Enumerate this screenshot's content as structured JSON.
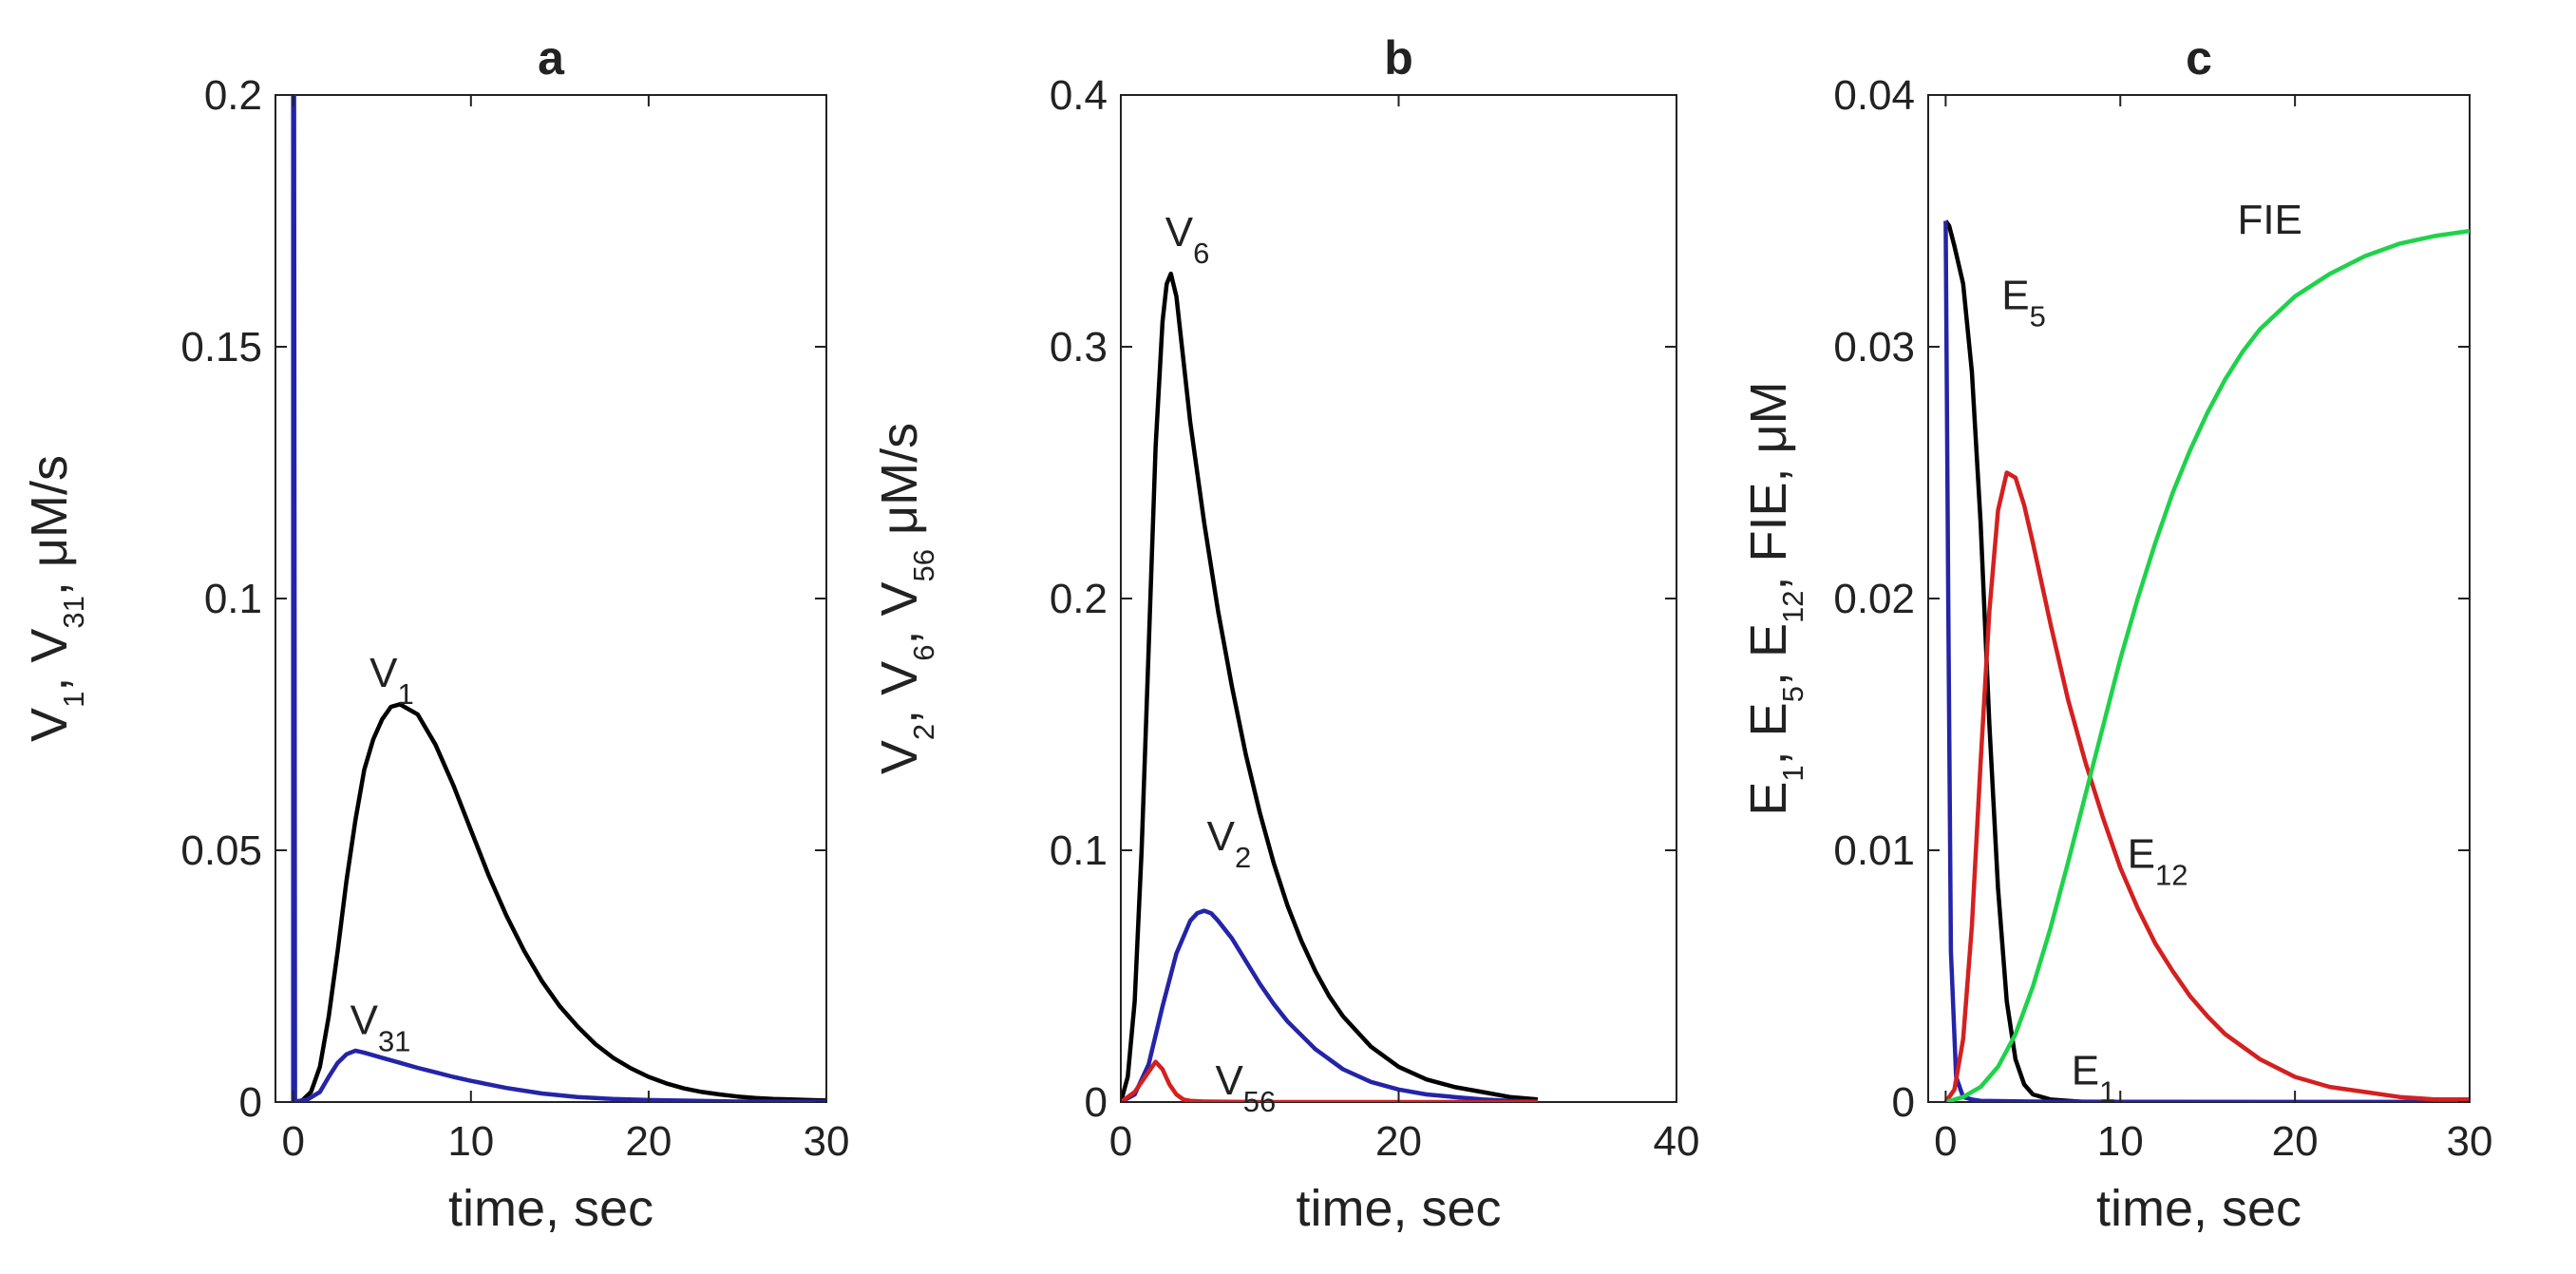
{
  "chart_data": [
    {
      "type": "line",
      "panel": "a",
      "title": "a",
      "xlabel": "time, sec",
      "ylabel": [
        [
          "V",
          "1"
        ],
        [
          ", ",
          ""
        ],
        [
          "V",
          "31"
        ],
        [
          ", μM/s",
          ""
        ]
      ],
      "xlim": [
        -1,
        30
      ],
      "ylim": [
        0,
        0.2
      ],
      "xticks": [
        0,
        10,
        20,
        30
      ],
      "yticks": [
        0,
        0.05,
        0.1,
        0.15,
        0.2
      ],
      "grid": false,
      "series": [
        {
          "name": "V1",
          "color": "#000000",
          "x": [
            0,
            0.5,
            1,
            1.5,
            2,
            2.5,
            3,
            3.5,
            4,
            4.5,
            5,
            5.5,
            6,
            7,
            8,
            9,
            10,
            11,
            12,
            13,
            14,
            15,
            16,
            17,
            18,
            19,
            20,
            21,
            22,
            23,
            24,
            25,
            26,
            27,
            28,
            29,
            30
          ],
          "y": [
            0,
            0.0003,
            0.002,
            0.007,
            0.017,
            0.03,
            0.044,
            0.056,
            0.066,
            0.072,
            0.076,
            0.0785,
            0.079,
            0.077,
            0.071,
            0.063,
            0.054,
            0.045,
            0.037,
            0.03,
            0.024,
            0.019,
            0.015,
            0.0115,
            0.0088,
            0.0067,
            0.005,
            0.0037,
            0.0027,
            0.002,
            0.0015,
            0.0011,
            0.0008,
            0.0006,
            0.0005,
            0.0004,
            0.0003
          ]
        },
        {
          "name": "V31",
          "color": "#2424a8",
          "x": [
            0,
            0.8,
            1.5,
            2,
            2.5,
            3,
            3.5,
            4,
            5,
            6,
            7,
            8,
            9,
            10,
            12,
            14,
            16,
            18,
            20,
            25,
            30
          ],
          "y": [
            0,
            0.0005,
            0.002,
            0.005,
            0.0078,
            0.0095,
            0.0102,
            0.0098,
            0.0088,
            0.0078,
            0.0068,
            0.0059,
            0.005,
            0.0042,
            0.0028,
            0.0017,
            0.001,
            0.0006,
            0.0004,
            0.0001,
            0.0001
          ]
        },
        {
          "name": "spike",
          "color": "#2424a8",
          "x": [
            0,
            0,
            0.05,
            0.1
          ],
          "y": [
            0,
            0.2,
            0.2,
            0
          ]
        }
      ],
      "annotations": [
        {
          "base": "V",
          "sub": "1",
          "x": 4.3,
          "y": 0.0825
        },
        {
          "base": "V",
          "sub": "31",
          "x": 3.2,
          "y": 0.0135
        }
      ]
    },
    {
      "type": "line",
      "panel": "b",
      "title": "b",
      "xlabel": "time, sec",
      "ylabel": [
        [
          "V",
          "2"
        ],
        [
          ", ",
          ""
        ],
        [
          "V",
          "6"
        ],
        [
          ", ",
          ""
        ],
        [
          "V",
          "56"
        ],
        [
          " μM/s",
          ""
        ]
      ],
      "xlim": [
        0,
        40
      ],
      "ylim": [
        0,
        0.4
      ],
      "xticks": [
        0,
        20,
        40
      ],
      "yticks": [
        0,
        0.1,
        0.2,
        0.3,
        0.4
      ],
      "grid": false,
      "series": [
        {
          "name": "V6",
          "color": "#000000",
          "x": [
            0,
            0.5,
            1,
            1.5,
            2,
            2.5,
            3,
            3.3,
            3.6,
            4,
            4.5,
            5,
            6,
            7,
            8,
            9,
            10,
            11,
            12,
            13,
            14,
            15,
            16,
            18,
            20,
            22,
            24,
            26,
            28,
            30
          ],
          "y": [
            0,
            0.01,
            0.04,
            0.1,
            0.18,
            0.26,
            0.31,
            0.325,
            0.329,
            0.32,
            0.295,
            0.27,
            0.23,
            0.195,
            0.165,
            0.138,
            0.115,
            0.095,
            0.078,
            0.064,
            0.052,
            0.042,
            0.034,
            0.022,
            0.014,
            0.009,
            0.006,
            0.004,
            0.002,
            0.001
          ]
        },
        {
          "name": "V2",
          "color": "#2424a8",
          "x": [
            0,
            1,
            2,
            3,
            4,
            5,
            5.5,
            6,
            6.5,
            7,
            8,
            9,
            10,
            11,
            12,
            14,
            16,
            18,
            20,
            22,
            24,
            26,
            28,
            30
          ],
          "y": [
            0,
            0.003,
            0.015,
            0.038,
            0.059,
            0.072,
            0.075,
            0.076,
            0.075,
            0.072,
            0.065,
            0.056,
            0.047,
            0.039,
            0.032,
            0.021,
            0.013,
            0.008,
            0.005,
            0.003,
            0.002,
            0.001,
            0.0005,
            0.0002
          ]
        },
        {
          "name": "V56",
          "color": "#d42020",
          "x": [
            0,
            1,
            2,
            2.5,
            3,
            3.5,
            4,
            4.5,
            5,
            6,
            8,
            10,
            15,
            20,
            25,
            30
          ],
          "y": [
            0,
            0.004,
            0.012,
            0.016,
            0.013,
            0.007,
            0.003,
            0.001,
            0.0005,
            0.0002,
            0.0001,
            0,
            0,
            0,
            0,
            0
          ]
        }
      ],
      "annotations": [
        {
          "base": "V",
          "sub": "6",
          "x": 3.2,
          "y": 0.34
        },
        {
          "base": "V",
          "sub": "2",
          "x": 6.2,
          "y": 0.1
        },
        {
          "base": "V",
          "sub": "56",
          "x": 6.8,
          "y": 0.003
        }
      ]
    },
    {
      "type": "line",
      "panel": "c",
      "title": "c",
      "xlabel": "time, sec",
      "ylabel": [
        [
          "E",
          "1"
        ],
        [
          ", ",
          ""
        ],
        [
          "E",
          "5"
        ],
        [
          ", ",
          ""
        ],
        [
          "E",
          "12"
        ],
        [
          ", FIE, μM",
          ""
        ]
      ],
      "xlim": [
        -1,
        30
      ],
      "ylim": [
        0,
        0.04
      ],
      "xticks": [
        0,
        10,
        20,
        30
      ],
      "yticks": [
        0,
        0.01,
        0.02,
        0.03,
        0.04
      ],
      "grid": false,
      "series": [
        {
          "name": "E5",
          "color": "#000000",
          "x": [
            0,
            0.2,
            0.5,
            1,
            1.5,
            2,
            2.5,
            3,
            3.5,
            4,
            4.5,
            5,
            6,
            8,
            10,
            15,
            20,
            25,
            30
          ],
          "y": [
            0.035,
            0.0348,
            0.034,
            0.0325,
            0.029,
            0.023,
            0.015,
            0.0085,
            0.004,
            0.0017,
            0.0007,
            0.0003,
            0.0001,
            0,
            0,
            0,
            0,
            0,
            0
          ]
        },
        {
          "name": "E1",
          "color": "#2424a8",
          "x": [
            0,
            0.15,
            0.3,
            0.6,
            1,
            1.5,
            2,
            5,
            10,
            20,
            30
          ],
          "y": [
            0.035,
            0.02,
            0.006,
            0.001,
            0.0002,
            0.0001,
            5e-05,
            2e-05,
            1e-05,
            0,
            0
          ]
        },
        {
          "name": "E12",
          "color": "#d42020",
          "x": [
            0,
            0.5,
            1,
            1.5,
            2,
            2.5,
            3,
            3.5,
            4,
            4.5,
            5,
            6,
            7,
            8,
            9,
            10,
            11,
            12,
            13,
            14,
            15,
            16,
            18,
            20,
            22,
            24,
            26,
            28,
            30
          ],
          "y": [
            0,
            0.0005,
            0.0025,
            0.007,
            0.0135,
            0.0195,
            0.0235,
            0.025,
            0.0248,
            0.0237,
            0.0222,
            0.019,
            0.016,
            0.0135,
            0.0113,
            0.0093,
            0.0077,
            0.0063,
            0.0052,
            0.0042,
            0.0034,
            0.0027,
            0.0017,
            0.001,
            0.0006,
            0.0004,
            0.0002,
            0.0001,
            0.0001
          ]
        },
        {
          "name": "FIE",
          "color": "#1ed24a",
          "x": [
            0,
            1,
            2,
            3,
            4,
            5,
            6,
            7,
            8,
            9,
            10,
            11,
            12,
            13,
            14,
            15,
            16,
            17,
            18,
            20,
            22,
            24,
            26,
            28,
            30
          ],
          "y": [
            0,
            0.0002,
            0.0006,
            0.0014,
            0.0027,
            0.0046,
            0.0069,
            0.0095,
            0.0122,
            0.0149,
            0.0176,
            0.02,
            0.0222,
            0.0242,
            0.0259,
            0.0274,
            0.0287,
            0.0298,
            0.0307,
            0.032,
            0.0329,
            0.0336,
            0.0341,
            0.0344,
            0.0346
          ]
        }
      ],
      "annotations": [
        {
          "base": "FIE",
          "sub": "",
          "x": 16.7,
          "y": 0.0345
        },
        {
          "base": "E",
          "sub": "5",
          "x": 3.2,
          "y": 0.0315
        },
        {
          "base": "E",
          "sub": "12",
          "x": 10.4,
          "y": 0.0093
        },
        {
          "base": "E",
          "sub": "1",
          "x": 7.2,
          "y": 0.0007
        }
      ]
    }
  ]
}
